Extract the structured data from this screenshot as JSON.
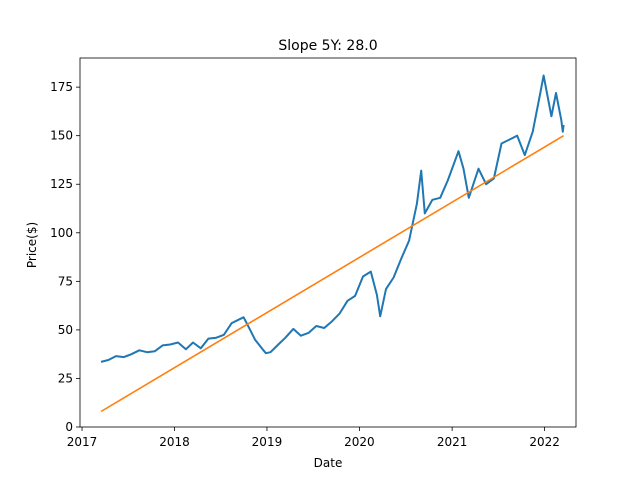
{
  "chart_data": {
    "type": "line",
    "title": "Slope 5Y: 28.0",
    "xlabel": "Date",
    "ylabel": "Price($)",
    "xlim": [
      "2016-12-24",
      "2022-05-05"
    ],
    "ylim": [
      0,
      190
    ],
    "x_ticks": [
      "2017",
      "2018",
      "2019",
      "2020",
      "2021",
      "2022"
    ],
    "y_ticks": [
      0,
      25,
      50,
      75,
      100,
      125,
      150,
      175
    ],
    "grid": false,
    "legend": "none",
    "series": [
      {
        "color": "#1f77b4",
        "x": [
          "2017-03-17",
          "2017-04-15",
          "2017-05-15",
          "2017-06-15",
          "2017-07-15",
          "2017-08-15",
          "2017-09-15",
          "2017-10-15",
          "2017-11-15",
          "2017-12-15",
          "2018-01-15",
          "2018-02-15",
          "2018-03-15",
          "2018-04-15",
          "2018-05-15",
          "2018-06-15",
          "2018-07-15",
          "2018-08-15",
          "2018-09-15",
          "2018-10-01",
          "2018-10-15",
          "2018-11-15",
          "2018-12-15",
          "2018-12-28",
          "2019-01-15",
          "2019-02-15",
          "2019-03-15",
          "2019-04-15",
          "2019-05-15",
          "2019-06-15",
          "2019-07-15",
          "2019-08-15",
          "2019-09-15",
          "2019-10-15",
          "2019-11-15",
          "2019-12-15",
          "2020-01-15",
          "2020-02-15",
          "2020-03-10",
          "2020-03-23",
          "2020-04-15",
          "2020-05-15",
          "2020-06-15",
          "2020-07-15",
          "2020-08-15",
          "2020-09-01",
          "2020-09-15",
          "2020-10-15",
          "2020-11-15",
          "2020-12-15",
          "2021-01-26",
          "2021-02-15",
          "2021-03-08",
          "2021-04-15",
          "2021-05-15",
          "2021-06-15",
          "2021-07-15",
          "2021-08-15",
          "2021-09-15",
          "2021-10-15",
          "2021-11-15",
          "2021-12-15",
          "2021-12-28",
          "2022-01-28",
          "2022-02-15",
          "2022-03-08",
          "2022-03-14",
          "2022-03-17"
        ],
        "values": [
          33.5,
          34.5,
          36.5,
          36.0,
          37.5,
          39.5,
          38.5,
          39.0,
          42.0,
          42.5,
          43.5,
          40.0,
          43.5,
          40.5,
          45.5,
          46.0,
          47.5,
          53.5,
          55.5,
          56.5,
          53.0,
          45.0,
          40.0,
          38.0,
          38.5,
          42.5,
          46.0,
          50.5,
          47.0,
          48.5,
          52.0,
          51.0,
          54.5,
          58.5,
          65.0,
          67.5,
          77.5,
          80.0,
          68.0,
          57.0,
          71.0,
          77.0,
          87.0,
          96.0,
          115.0,
          132.0,
          110.0,
          117.0,
          118.0,
          127.0,
          142.0,
          133.0,
          118.0,
          133.0,
          125.0,
          128.0,
          146.0,
          148.0,
          150.0,
          140.0,
          152.0,
          172.0,
          181.0,
          160.0,
          172.0,
          158.0,
          152.0,
          155.5
        ]
      },
      {
        "color": "#ff7f0e",
        "x": [
          "2017-03-17",
          "2022-03-17"
        ],
        "values": [
          8.0,
          150.0
        ]
      }
    ]
  }
}
